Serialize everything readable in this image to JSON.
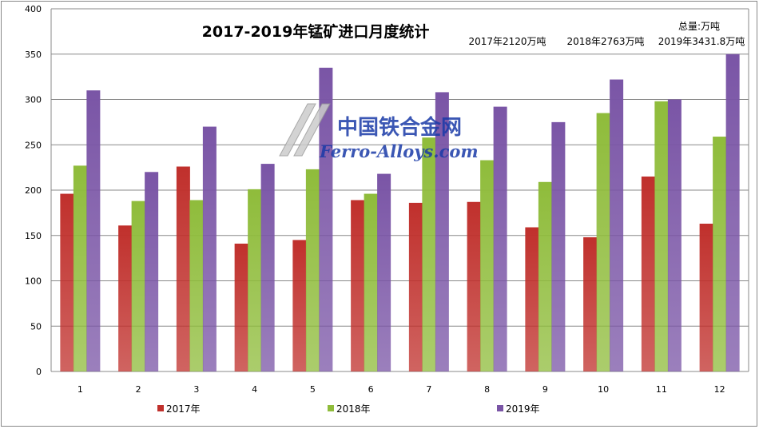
{
  "chart_data": {
    "type": "bar",
    "title": "2017-2019年锰矿进口月度统计",
    "annotations": [
      "总量:万吨",
      "2017年2120万吨",
      "2018年2763万吨",
      "2019年3431.8万吨"
    ],
    "watermark": {
      "cn": "中国铁合金网",
      "en": "Ferro-Alloys.com"
    },
    "categories": [
      "1",
      "2",
      "3",
      "4",
      "5",
      "6",
      "7",
      "8",
      "9",
      "10",
      "11",
      "12"
    ],
    "ylim": [
      0,
      400
    ],
    "yticks": [
      "0",
      "50",
      "100",
      "150",
      "200",
      "250",
      "300",
      "350",
      "400"
    ],
    "grid": true,
    "legend_position": "bottom",
    "series": [
      {
        "name": "2017年",
        "color": "#c0302c",
        "values": [
          196,
          161,
          226,
          141,
          145,
          189,
          186,
          187,
          159,
          148,
          215,
          163
        ]
      },
      {
        "name": "2018年",
        "color": "#8fbc3b",
        "values": [
          227,
          188,
          189,
          201,
          223,
          196,
          258,
          233,
          209,
          285,
          298,
          259
        ]
      },
      {
        "name": "2019年",
        "color": "#7a55a6",
        "values": [
          310,
          220,
          270,
          229,
          335,
          218,
          308,
          292,
          275,
          322,
          300,
          350
        ]
      }
    ]
  }
}
